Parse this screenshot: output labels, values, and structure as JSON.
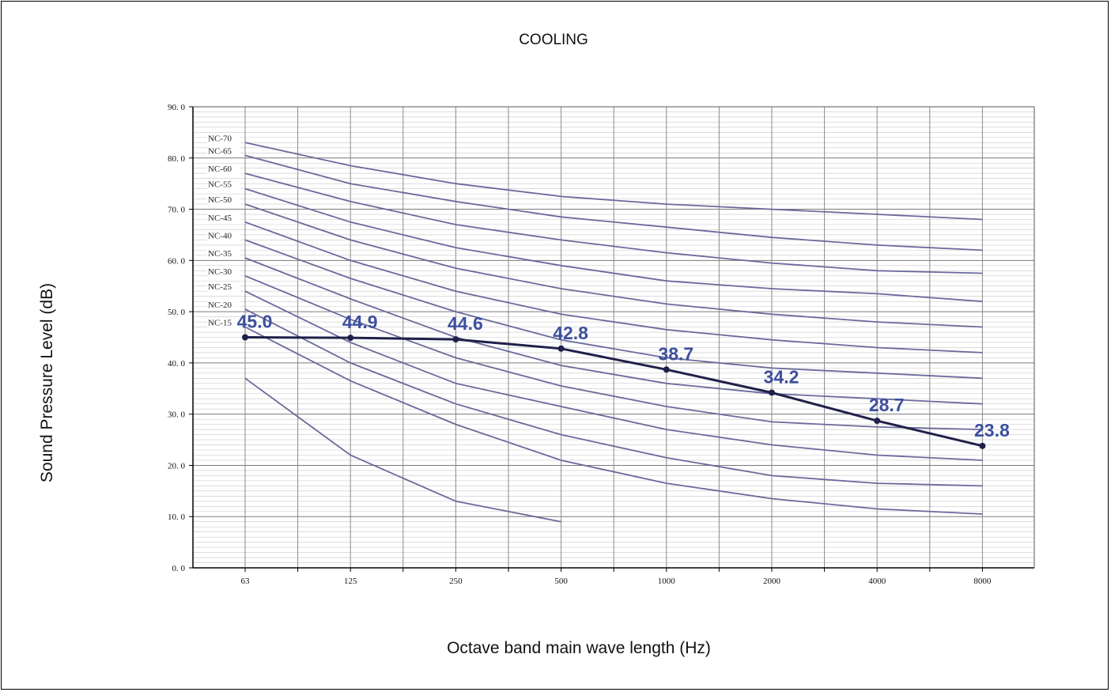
{
  "chart_data": {
    "type": "line",
    "title": "COOLING",
    "xlabel": "Octave band main wave length (Hz)",
    "ylabel": "Sound Pressure  Level (dB)",
    "categories": [
      "63",
      "125",
      "250",
      "500",
      "1000",
      "2000",
      "4000",
      "8000"
    ],
    "yticks": [
      "0. 0",
      "10. 0",
      "20. 0",
      "30. 0",
      "40. 0",
      "50. 0",
      "60. 0",
      "70. 0",
      "80. 0",
      "90. 0"
    ],
    "ylim": [
      0,
      90
    ],
    "grid": true,
    "curve_color": "#6a6a9c",
    "measured_color": "#20204a",
    "label_color": "#3d4f9f",
    "nc_curves": [
      {
        "name": "NC-70",
        "values": [
          83,
          78.5,
          75,
          72.5,
          71,
          70,
          69,
          68
        ]
      },
      {
        "name": "NC-65",
        "values": [
          80.5,
          75,
          71.5,
          68.5,
          66.5,
          64.5,
          63,
          62
        ]
      },
      {
        "name": "NC-60",
        "values": [
          77,
          71.5,
          67,
          64,
          61.5,
          59.5,
          58,
          57.5
        ]
      },
      {
        "name": "NC-55",
        "values": [
          74,
          67.5,
          62.5,
          59,
          56,
          54.5,
          53.5,
          52
        ]
      },
      {
        "name": "NC-50",
        "values": [
          71,
          64,
          58.5,
          54.5,
          51.5,
          49.5,
          48,
          47
        ]
      },
      {
        "name": "NC-45",
        "values": [
          67.5,
          60,
          54,
          49.5,
          46.5,
          44.5,
          43,
          42
        ]
      },
      {
        "name": "NC-40",
        "values": [
          64,
          56.5,
          50,
          44.5,
          41,
          39,
          38,
          37
        ]
      },
      {
        "name": "NC-35",
        "values": [
          60.5,
          52.5,
          45,
          39.5,
          36,
          34,
          33,
          32
        ]
      },
      {
        "name": "NC-30",
        "values": [
          57,
          48.5,
          41,
          35.5,
          31.5,
          28.5,
          27.5,
          27
        ]
      },
      {
        "name": "NC-25",
        "values": [
          54,
          44,
          36,
          31.5,
          27,
          24,
          22,
          21
        ]
      },
      {
        "name": "NC-20",
        "values": [
          50.5,
          40,
          32,
          26,
          21.5,
          18,
          16.5,
          16
        ]
      },
      {
        "name": "NC-15",
        "values": [
          47,
          36.5,
          28,
          21,
          16.5,
          13.5,
          11.5,
          10.5
        ]
      },
      {
        "name": "",
        "values": [
          37,
          22,
          13,
          9,
          null,
          null,
          null,
          null
        ]
      }
    ],
    "measured": {
      "values": [
        45.0,
        44.9,
        44.6,
        42.8,
        38.7,
        34.2,
        28.7,
        23.8
      ],
      "labels": [
        "45.0",
        "44.9",
        "44.6",
        "42.8",
        "38.7",
        "34.2",
        "28.7",
        "23.8"
      ]
    }
  }
}
